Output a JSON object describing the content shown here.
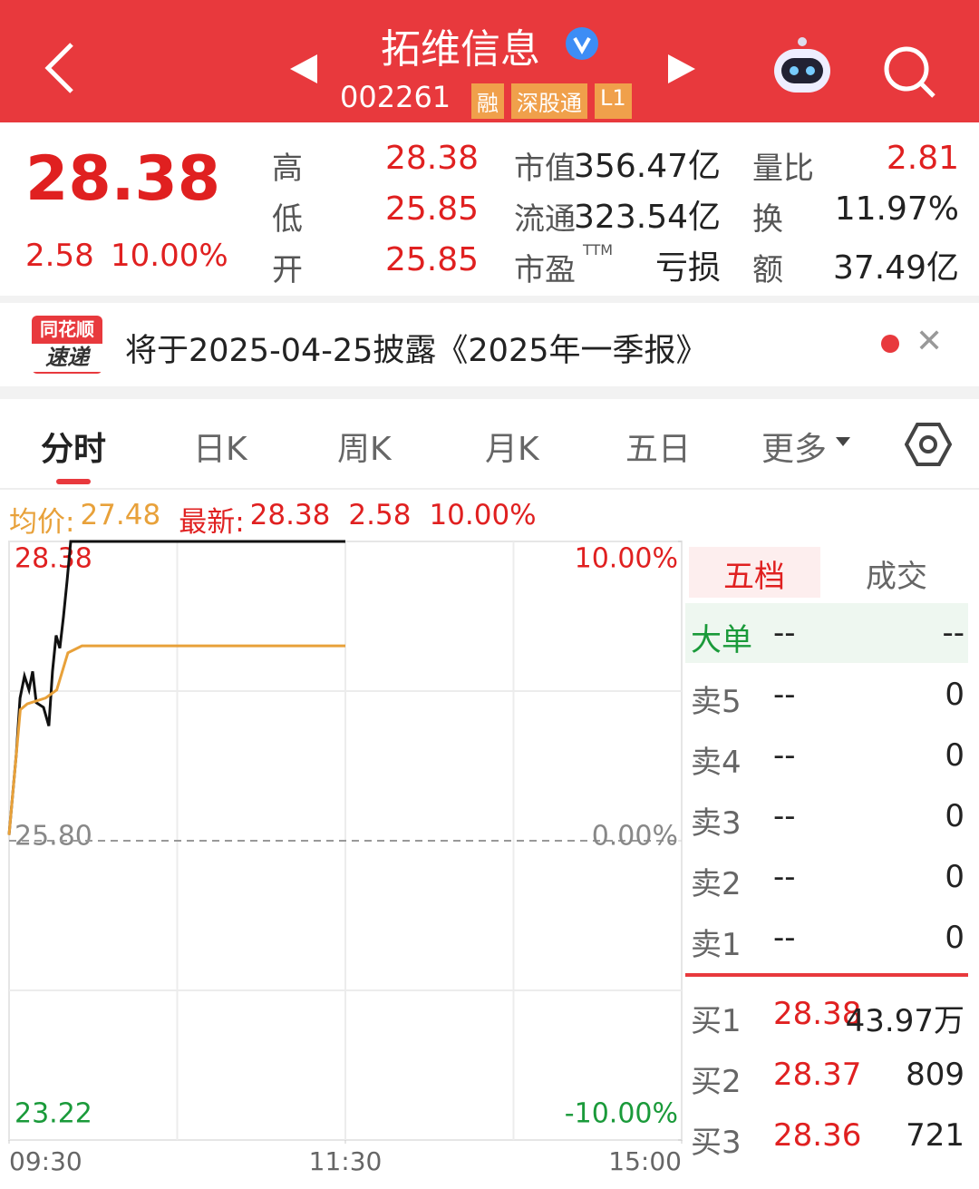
{
  "header": {
    "title": "拓维信息",
    "code": "002261",
    "tags": [
      "融",
      "深股通",
      "L1"
    ]
  },
  "quote": {
    "price": "28.38",
    "change": "2.58",
    "change_pct": "10.00%",
    "stats": [
      [
        {
          "label": "高",
          "value": "28.38"
        },
        {
          "label": "低",
          "value": "25.85"
        },
        {
          "label": "开",
          "value": "25.85"
        }
      ],
      [
        {
          "label": "市值",
          "value": "356.47亿"
        },
        {
          "label": "流通",
          "value": "323.54亿"
        },
        {
          "label": "市盈",
          "sup": "TTM",
          "value": "亏损"
        }
      ],
      [
        {
          "label": "量比",
          "value": "2.81"
        },
        {
          "label": "换",
          "value": "11.97%"
        },
        {
          "label": "额",
          "value": "37.49亿"
        }
      ]
    ]
  },
  "notice": {
    "logo": [
      "同花顺",
      "速递"
    ],
    "text": "将于2025-04-25披露《2025年一季报》"
  },
  "tabs": [
    "分时",
    "日K",
    "周K",
    "月K",
    "五日",
    "更多"
  ],
  "summary": [
    {
      "label": "均价:",
      "value": "27.48"
    },
    {
      "label": "最新:",
      "value": "28.38"
    },
    {
      "value": "2.58"
    },
    {
      "value": "10.00%"
    }
  ],
  "chart_data": {
    "type": "line",
    "xlim": [
      0,
      240
    ],
    "xticks": [
      {
        "value": 0,
        "label": "09:30"
      },
      {
        "value": 120,
        "label": "11:30"
      },
      {
        "value": 240,
        "label": "15:00"
      }
    ],
    "ylim": [
      23.22,
      28.38
    ],
    "yticks": [
      28.38,
      {
        "value": 25.8,
        "label": "25.80"
      },
      23.22
    ],
    "y2lim": [
      -10,
      10
    ],
    "y2ticks": [
      {
        "value": 10,
        "label": "10.00%"
      },
      {
        "value": 0,
        "label": "0.00%"
      },
      {
        "value": -10,
        "label": "-10.00%"
      }
    ],
    "grid": true,
    "series": [
      {
        "color": "#111111",
        "x": [
          0,
          2.6,
          3.9,
          5.5,
          7.1,
          8.4,
          9.7,
          12.3,
          14.2,
          15.5,
          16.8,
          18.1,
          19.4,
          20.7,
          22,
          120
        ],
        "values": [
          25.85,
          26.55,
          27.03,
          27.22,
          27.1,
          27.26,
          26.99,
          26.95,
          26.79,
          27.26,
          27.57,
          27.46,
          27.73,
          28.04,
          28.38,
          28.38
        ]
      },
      {
        "color": "#e8a13a",
        "x": [
          0,
          4,
          6.5,
          13,
          17,
          21,
          26,
          120
        ],
        "values": [
          25.85,
          26.93,
          26.98,
          27.03,
          27.1,
          27.42,
          27.48,
          27.48
        ]
      }
    ]
  },
  "order_book": {
    "tabs": [
      "五档",
      "成交"
    ],
    "big": {
      "label": "大单",
      "price": "--",
      "volume": "--"
    },
    "asks": [
      {
        "label": "卖5",
        "price": "--",
        "volume": "0"
      },
      {
        "label": "卖4",
        "price": "--",
        "volume": "0"
      },
      {
        "label": "卖3",
        "price": "--",
        "volume": "0"
      },
      {
        "label": "卖2",
        "price": "--",
        "volume": "0"
      },
      {
        "label": "卖1",
        "price": "--",
        "volume": "0"
      }
    ],
    "bids": [
      {
        "label": "买1",
        "price": "28.38",
        "volume": "43.97万"
      },
      {
        "label": "买2",
        "price": "28.37",
        "volume": "809"
      },
      {
        "label": "买3",
        "price": "28.36",
        "volume": "721"
      }
    ]
  }
}
